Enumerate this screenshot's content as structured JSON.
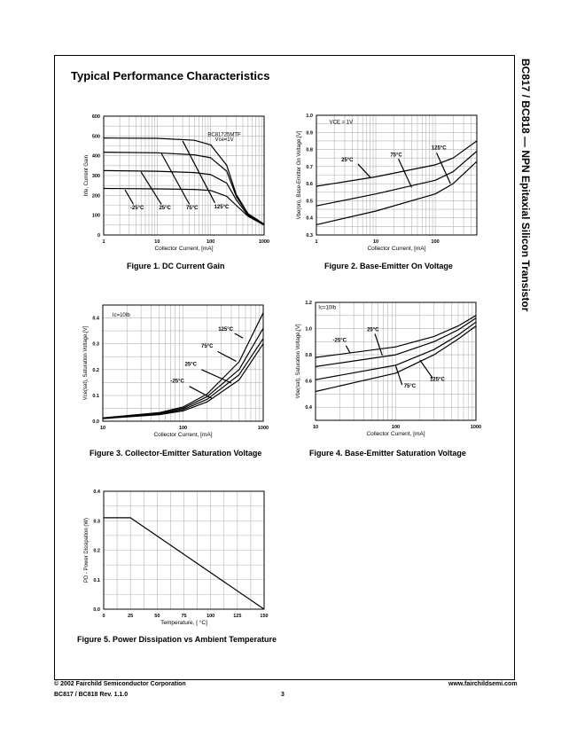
{
  "page": {
    "title": "Typical Performance Characteristics",
    "side_title": "BC817 / BC818 — NPN Epitaxial Silicon Transistor",
    "footer": {
      "copyright": "© 2002 Fairchild Semiconductor Corporation",
      "revision": "BC817 / BC818 Rev. 1.1.0",
      "page_number": "3",
      "website": "www.fairchildsemi.com"
    }
  },
  "chart_data": [
    {
      "type": "line",
      "title": "Figure 1. DC Current Gain",
      "xlabel": "Collector Current, [mA]",
      "ylabel": "hfe, Current Gain",
      "xscale": "log",
      "xlim": [
        1,
        1000
      ],
      "ylim": [
        0,
        600
      ],
      "xticks": [
        1,
        10,
        100,
        1000
      ],
      "xtick_labels": [
        "1",
        "10",
        "100",
        "1000"
      ],
      "yticks": [
        0,
        100,
        200,
        300,
        400,
        500,
        600
      ],
      "ytick_labels": [
        "0",
        "100",
        "200",
        "300",
        "400",
        "500",
        "600"
      ],
      "grid": true,
      "box_text": [
        "BC81725MTF",
        "Vce=1V"
      ],
      "series": [
        {
          "name": "-25°C",
          "points": [
            [
              1,
              235
            ],
            [
              10,
              233
            ],
            [
              50,
              230
            ],
            [
              100,
              225
            ],
            [
              200,
              195
            ],
            [
              300,
              150
            ],
            [
              500,
              95
            ],
            [
              1000,
              50
            ]
          ]
        },
        {
          "name": "25°C",
          "points": [
            [
              1,
              325
            ],
            [
              10,
              322
            ],
            [
              50,
              315
            ],
            [
              100,
              305
            ],
            [
              200,
              262
            ],
            [
              300,
              178
            ],
            [
              500,
              100
            ],
            [
              1000,
              52
            ]
          ]
        },
        {
          "name": "75°C",
          "points": [
            [
              1,
              418
            ],
            [
              10,
              415
            ],
            [
              50,
              405
            ],
            [
              100,
              390
            ],
            [
              200,
              322
            ],
            [
              300,
              195
            ],
            [
              500,
              105
            ],
            [
              1000,
              53
            ]
          ]
        },
        {
          "name": "125°C",
          "points": [
            [
              1,
              490
            ],
            [
              10,
              488
            ],
            [
              50,
              478
            ],
            [
              100,
              455
            ],
            [
              200,
              352
            ],
            [
              300,
              205
            ],
            [
              500,
              108
            ],
            [
              1000,
              55
            ]
          ]
        }
      ]
    },
    {
      "type": "line",
      "title": "Figure 2. Base-Emitter On Voltage",
      "xlabel": "Collector Current, [mA]",
      "ylabel": "Vbe(on), Base-Emitter On Voltage,[V]",
      "xscale": "log",
      "xlim": [
        1,
        500
      ],
      "ylim": [
        0.3,
        1.0
      ],
      "xticks": [
        1,
        10,
        100
      ],
      "xtick_labels": [
        "1",
        "10",
        "100"
      ],
      "yticks": [
        0.3,
        0.4,
        0.5,
        0.6,
        0.7,
        0.8,
        0.9,
        1.0
      ],
      "ytick_labels": [
        "0.3",
        "0.4",
        "0.5",
        "0.6",
        "0.7",
        "0.8",
        "0.9",
        "1.0"
      ],
      "grid": true,
      "box_text": [
        "VCE = 1V"
      ],
      "series": [
        {
          "name": "25°C",
          "points": [
            [
              1,
              0.585
            ],
            [
              10,
              0.64
            ],
            [
              100,
              0.71
            ],
            [
              200,
              0.75
            ],
            [
              500,
              0.85
            ]
          ]
        },
        {
          "name": "75°C",
          "points": [
            [
              1,
              0.47
            ],
            [
              10,
              0.54
            ],
            [
              100,
              0.62
            ],
            [
              200,
              0.67
            ],
            [
              500,
              0.79
            ]
          ]
        },
        {
          "name": "125°C",
          "points": [
            [
              1,
              0.36
            ],
            [
              10,
              0.44
            ],
            [
              100,
              0.54
            ],
            [
              200,
              0.6
            ],
            [
              500,
              0.73
            ]
          ]
        }
      ]
    },
    {
      "type": "line",
      "title": "Figure 3. Collector-Emitter Saturation Voltage",
      "xlabel": "Collector Current, [mA]",
      "ylabel": "Vce(sat), Saturation Voltage,[V]",
      "xscale": "log",
      "xlim": [
        10,
        1000
      ],
      "ylim": [
        0,
        0.45
      ],
      "xticks": [
        10,
        100,
        1000
      ],
      "xtick_labels": [
        "10",
        "100",
        "1000"
      ],
      "yticks": [
        0,
        0.1,
        0.2,
        0.3,
        0.4
      ],
      "ytick_labels": [
        "0.0",
        "0.1",
        "0.2",
        "0.3",
        "0.4"
      ],
      "grid": true,
      "box_text": [
        "Ic=10Ib"
      ],
      "series": [
        {
          "name": "-25°C",
          "points": [
            [
              10,
              0.01
            ],
            [
              50,
              0.025
            ],
            [
              100,
              0.04
            ],
            [
              200,
              0.075
            ],
            [
              500,
              0.16
            ],
            [
              1000,
              0.3
            ]
          ]
        },
        {
          "name": "25°C",
          "points": [
            [
              10,
              0.011
            ],
            [
              50,
              0.027
            ],
            [
              100,
              0.045
            ],
            [
              200,
              0.085
            ],
            [
              500,
              0.18
            ],
            [
              1000,
              0.32
            ]
          ]
        },
        {
          "name": "75°C",
          "points": [
            [
              10,
              0.012
            ],
            [
              50,
              0.03
            ],
            [
              100,
              0.05
            ],
            [
              200,
              0.095
            ],
            [
              500,
              0.2
            ],
            [
              1000,
              0.36
            ]
          ]
        },
        {
          "name": "125°C",
          "points": [
            [
              10,
              0.013
            ],
            [
              50,
              0.033
            ],
            [
              100,
              0.055
            ],
            [
              200,
              0.105
            ],
            [
              500,
              0.23
            ],
            [
              1000,
              0.42
            ]
          ]
        }
      ]
    },
    {
      "type": "line",
      "title": "Figure 4. Base-Emitter Saturation Voltage",
      "xlabel": "Collector Current, [mA]",
      "ylabel": "Vbe(sat), Saturation Voltage,[V]",
      "xscale": "log",
      "xlim": [
        10,
        1000
      ],
      "ylim": [
        0.3,
        1.2
      ],
      "xticks": [
        10,
        100,
        1000
      ],
      "xtick_labels": [
        "10",
        "100",
        "1000"
      ],
      "yticks": [
        0.4,
        0.6,
        0.8,
        1.0,
        1.2
      ],
      "ytick_labels": [
        "0.4",
        "0.6",
        "0.8",
        "1.0",
        "1.2"
      ],
      "grid": true,
      "box_text": [
        "Ic=10Ib"
      ],
      "series": [
        {
          "name": "-25°C",
          "points": [
            [
              10,
              0.78
            ],
            [
              100,
              0.86
            ],
            [
              300,
              0.94
            ],
            [
              600,
              1.02
            ],
            [
              1000,
              1.1
            ]
          ]
        },
        {
          "name": "25°C",
          "points": [
            [
              10,
              0.71
            ],
            [
              100,
              0.8
            ],
            [
              300,
              0.9
            ],
            [
              600,
              0.99
            ],
            [
              1000,
              1.08
            ]
          ]
        },
        {
          "name": "75°C",
          "points": [
            [
              10,
              0.61
            ],
            [
              100,
              0.72
            ],
            [
              300,
              0.84
            ],
            [
              600,
              0.95
            ],
            [
              1000,
              1.05
            ]
          ]
        },
        {
          "name": "125°C",
          "points": [
            [
              10,
              0.52
            ],
            [
              100,
              0.66
            ],
            [
              300,
              0.8
            ],
            [
              600,
              0.92
            ],
            [
              1000,
              1.02
            ]
          ]
        }
      ]
    },
    {
      "type": "line",
      "title": "Figure 5. Power Dissipation vs Ambient Temperature",
      "xlabel": "Temperature, [ °C]",
      "ylabel": "PD - Power Dissipation (W)",
      "xscale": "linear",
      "xlim": [
        0,
        150
      ],
      "ylim": [
        0,
        0.4
      ],
      "xticks": [
        0,
        25,
        50,
        75,
        100,
        125,
        150
      ],
      "xtick_labels": [
        "0",
        "25",
        "50",
        "75",
        "100",
        "125",
        "150"
      ],
      "yticks": [
        0,
        0.1,
        0.2,
        0.3,
        0.4
      ],
      "ytick_labels": [
        "0.0",
        "0.1",
        "0.2",
        "0.3",
        "0.4"
      ],
      "grid": true,
      "box_text": [],
      "series": [
        {
          "name": "PD",
          "points": [
            [
              0,
              0.31
            ],
            [
              25,
              0.31
            ],
            [
              150,
              0
            ]
          ]
        }
      ]
    }
  ]
}
